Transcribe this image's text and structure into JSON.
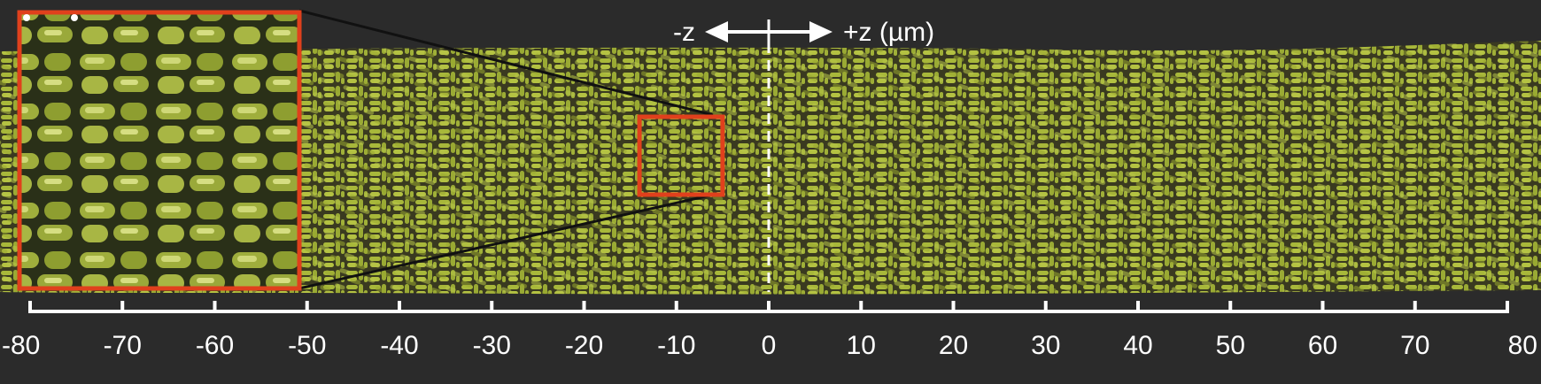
{
  "direction": {
    "minus_label": "-z",
    "plus_label": "+z (µm)"
  },
  "scale_axis": {
    "unit": "µm",
    "min": -80,
    "max": 80,
    "major_step": 10,
    "tick_labels": [
      "-80",
      "-70",
      "-60",
      "-50",
      "-40",
      "-30",
      "-20",
      "-10",
      "0",
      "10",
      "20",
      "30",
      "40",
      "50",
      "60",
      "70",
      "80"
    ]
  },
  "colors": {
    "background": "#2b2b2b",
    "cells": "#a8b83a",
    "cell_highlight": "#d4dc6a",
    "inset_border": "#e0401c",
    "scale_bar": "#ffffff",
    "dashed_line": "#ffffff"
  },
  "zoom_region_x_um": [
    -14,
    -5
  ],
  "center_line_x_um": 0
}
